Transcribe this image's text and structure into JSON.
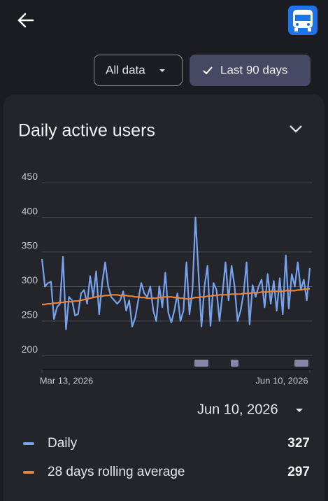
{
  "ui": {
    "filter_all": "All data",
    "filter_recent": "Last 90 days"
  },
  "chart_data": {
    "type": "line",
    "title": "Daily active users",
    "xlim": [
      0,
      89
    ],
    "xticks": [
      {
        "value": 0,
        "label": "Mar 13, 2026"
      },
      {
        "value": 89,
        "label": "Jun 10, 2026"
      }
    ],
    "ylim": [
      180,
      455
    ],
    "yticks": [
      200,
      250,
      300,
      350,
      400,
      450
    ],
    "grid": true,
    "series": [
      {
        "name": "Daily",
        "color": "#76a2ee",
        "values": [
          340,
          300,
          305,
          307,
          253,
          270,
          275,
          343,
          238,
          285,
          280,
          258,
          260,
          290,
          295,
          275,
          315,
          285,
          322,
          260,
          305,
          335,
          300,
          285,
          280,
          275,
          280,
          293,
          265,
          280,
          242,
          255,
          280,
          305,
          290,
          285,
          300,
          265,
          250,
          300,
          270,
          320,
          262,
          248,
          265,
          290,
          250,
          265,
          335,
          260,
          295,
          400,
          320,
          242,
          300,
          330,
          243,
          305,
          295,
          250,
          290,
          335,
          280,
          330,
          300,
          250,
          265,
          290,
          335,
          245,
          302,
          285,
          300,
          310,
          270,
          318,
          275,
          308,
          265,
          312,
          260,
          345,
          268,
          318,
          300,
          335,
          295,
          310,
          280,
          327
        ]
      },
      {
        "name": "28 days rolling average",
        "color": "#e8843c",
        "values": [
          274,
          274,
          275,
          275,
          276,
          276,
          277,
          277,
          278,
          278,
          278,
          279,
          279,
          280,
          281,
          282,
          283,
          284,
          285,
          286,
          286,
          287,
          287,
          288,
          288,
          288,
          287,
          287,
          287,
          286,
          286,
          285,
          285,
          284,
          284,
          283,
          283,
          283,
          283,
          284,
          284,
          285,
          285,
          285,
          284,
          284,
          283,
          283,
          282,
          282,
          283,
          284,
          284,
          285,
          285,
          286,
          286,
          287,
          287,
          288,
          288,
          288,
          288,
          289,
          289,
          289,
          289,
          290,
          290,
          290,
          291,
          291,
          291,
          292,
          292,
          292,
          293,
          293,
          293,
          293,
          293,
          294,
          294,
          294,
          294,
          295,
          295,
          296,
          296,
          297
        ]
      }
    ]
  }
}
